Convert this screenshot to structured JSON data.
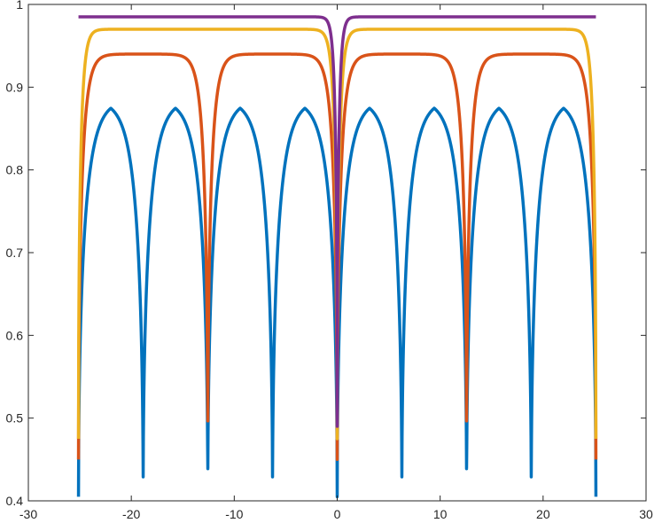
{
  "chart_data": {
    "type": "line",
    "title": "",
    "xlabel": "",
    "ylabel": "",
    "xlim": [
      -30,
      30
    ],
    "ylim": [
      0.4,
      1.0
    ],
    "x_ticks": [
      "-30",
      "-20",
      "-10",
      "0",
      "10",
      "20",
      "30"
    ],
    "y_ticks": [
      "0.4",
      "0.5",
      "0.6",
      "0.7",
      "0.8",
      "0.9",
      "1"
    ],
    "grid": false,
    "legend": "none",
    "x_range": [
      -25.13,
      25.13
    ],
    "series": [
      {
        "color": "#0072BD",
        "dips_at": [
          -25.13,
          -18.85,
          -12.57,
          -6.28,
          0,
          6.28,
          12.57,
          18.85,
          25.13
        ],
        "peak": 0.885,
        "dip_min": 0.405,
        "sharpness": 1.0
      },
      {
        "color": "#D95319",
        "dips_at": [
          -25.13,
          -12.57,
          0,
          12.57,
          25.13
        ],
        "peak": 0.94,
        "dip_min": 0.45,
        "sharpness": 0.55
      },
      {
        "color": "#EDB120",
        "dips_at": [
          -25.13,
          0,
          25.13
        ],
        "peak": 0.97,
        "dip_min": 0.475,
        "sharpness": 0.35
      },
      {
        "color": "#7E2F8E",
        "dips_at": [
          0
        ],
        "peak": 0.985,
        "dip_min": 0.49,
        "sharpness": 0.25
      }
    ]
  }
}
